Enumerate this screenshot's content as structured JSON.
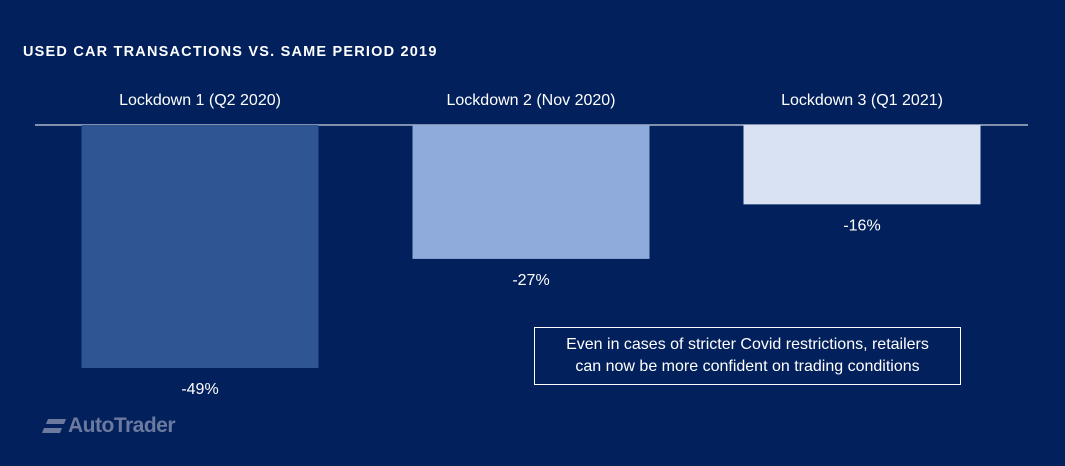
{
  "chart_data": {
    "type": "bar",
    "title": "USED CAR TRANSACTIONS VS. SAME PERIOD 2019",
    "categories": [
      "Lockdown 1 (Q2 2020)",
      "Lockdown 2 (Nov 2020)",
      "Lockdown 3 (Q1 2021)"
    ],
    "values": [
      -49,
      -27,
      -16
    ],
    "value_labels": [
      "-49%",
      "-27%",
      "-16%"
    ],
    "ylim": [
      -50,
      0
    ],
    "grid": false,
    "legend": "none",
    "colors": [
      "#305593",
      "#8eabdc",
      "#d9e2f3"
    ]
  },
  "callout": {
    "line1": "Even in cases of stricter Covid restrictions, retailers",
    "line2": "can now be more confident on trading conditions"
  },
  "logo": {
    "text": "AutoTrader",
    "icon": "autotrader-logo-icon"
  },
  "colors": {
    "background": "#02205b",
    "baseline": "#ffffff"
  }
}
